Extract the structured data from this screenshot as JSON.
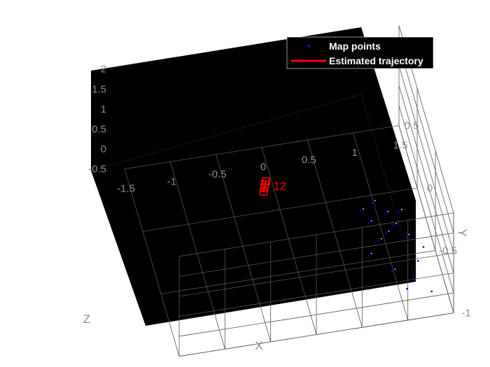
{
  "chart_data": {
    "type": "scatter",
    "title": "",
    "background": "#000000",
    "grid": true,
    "legend_position": "top-right",
    "axes": {
      "x": {
        "label": "X",
        "ticks": [
          "-1.5",
          "-1",
          "-0.5",
          "0",
          "0.5",
          "1",
          "1.5"
        ],
        "range": [
          -1.5,
          1.5
        ]
      },
      "y": {
        "label": "Y",
        "ticks": [
          "-1",
          "-0.5",
          "0",
          "0.5"
        ],
        "range": [
          -1,
          0.5
        ]
      },
      "z": {
        "label": "Z",
        "ticks": [
          "-0.5",
          "0",
          "0.5",
          "1",
          "1.5",
          "2"
        ],
        "range": [
          -0.5,
          2
        ]
      }
    },
    "series": [
      {
        "name": "Map points",
        "color": "#0000ff",
        "marker": "dot",
        "points": [
          [
            1.05,
            -0.85,
            -0.2
          ],
          [
            1.15,
            -0.78,
            -0.2
          ],
          [
            1.25,
            -0.65,
            -0.2
          ],
          [
            1.3,
            -0.9,
            -0.2
          ],
          [
            0.95,
            -0.7,
            -0.2
          ],
          [
            0.9,
            -0.45,
            -0.2
          ],
          [
            1.0,
            -0.4,
            -0.2
          ],
          [
            1.1,
            -0.35,
            -0.2
          ],
          [
            1.2,
            -0.45,
            -0.2
          ],
          [
            0.85,
            -0.3,
            -0.2
          ],
          [
            0.95,
            -0.15,
            -0.2
          ],
          [
            1.05,
            -0.25,
            -0.2
          ],
          [
            0.75,
            -0.55,
            -0.2
          ],
          [
            1.35,
            -0.55,
            -0.2
          ],
          [
            1.2,
            -0.25,
            -0.2
          ],
          [
            0.8,
            -0.2,
            -0.2
          ]
        ]
      },
      {
        "name": "Estimated trajectory",
        "color": "#ff0000",
        "marker": "line",
        "points": [
          [
            -0.18,
            0.0,
            0.0
          ],
          [
            -0.16,
            0.03,
            0.0
          ],
          [
            -0.14,
            0.06,
            0.0
          ],
          [
            -0.12,
            0.08,
            0.0
          ]
        ]
      }
    ],
    "annotations": [
      {
        "text": "12",
        "color": "#ff0000",
        "x": -0.05,
        "y": 0.05,
        "z": 0.0
      }
    ]
  }
}
